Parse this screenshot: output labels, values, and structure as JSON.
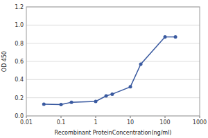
{
  "chart_data": {
    "type": "line",
    "xlabel": "Recombinant ProteinConcentration(ng/ml)",
    "ylabel": "OD 450",
    "x": [
      0.032,
      0.1,
      0.2,
      1.0,
      2.0,
      3.0,
      10.0,
      20.0,
      100.0,
      200.0
    ],
    "values": [
      0.13,
      0.125,
      0.15,
      0.16,
      0.22,
      0.24,
      0.32,
      0.57,
      0.87,
      0.87
    ],
    "color": "#3a5aa0",
    "marker": "circle",
    "log": "x",
    "grid": true,
    "xlim": [
      0.01,
      1000
    ],
    "ylim": [
      0,
      1.2
    ],
    "xticks": [
      0.01,
      0.1,
      1,
      10,
      100,
      1000
    ],
    "yticks": [
      {
        "value": 0,
        "label": "0.0"
      },
      0.2,
      0.4,
      0.6,
      0.8,
      {
        "value": 1.0,
        "label": "1.0"
      },
      1.2
    ]
  }
}
